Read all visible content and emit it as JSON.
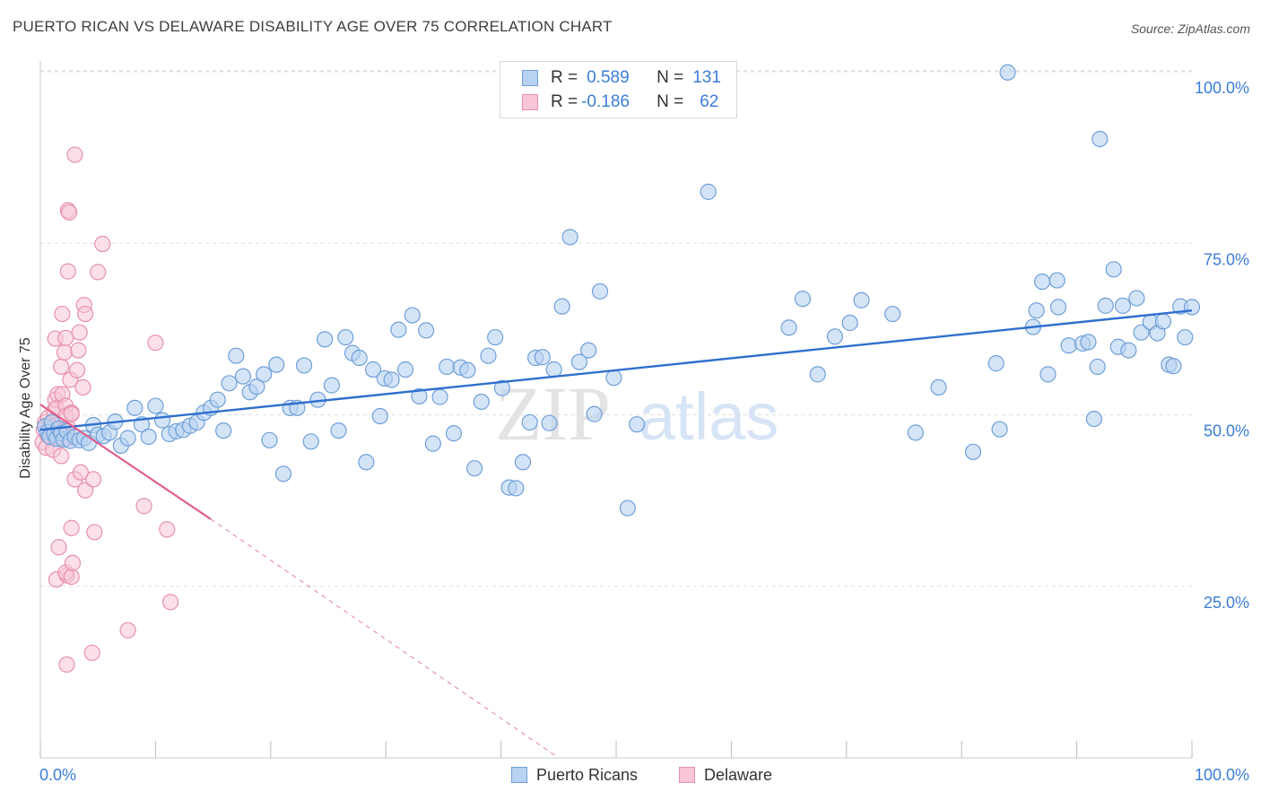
{
  "title": "PUERTO RICAN VS DELAWARE DISABILITY AGE OVER 75 CORRELATION CHART",
  "source": "Source: ZipAtlas.com",
  "watermark": {
    "zip": "ZIP",
    "atlas": "atlas"
  },
  "legend": {
    "rows": [
      {
        "r_label": "R =",
        "r_value": "0.589",
        "n_label": "N =",
        "n_value": "131"
      },
      {
        "r_label": "R =",
        "r_value": "-0.186",
        "n_label": "N =",
        "n_value": "62"
      }
    ]
  },
  "colors": {
    "blue_fill": "#b8d2f2",
    "blue_stroke": "#6f9fd8",
    "blue_line": "#2f6fce",
    "pink_fill": "#f8c6d6",
    "pink_stroke": "#e890ae",
    "pink_line": "#e0608c",
    "tick_text": "#3b7dd8",
    "grid": "#dedede"
  },
  "chart_data": {
    "type": "scatter",
    "title": "PUERTO RICAN VS DELAWARE DISABILITY AGE OVER 75 CORRELATION CHART",
    "xlabel": "",
    "ylabel": "Disability Age Over 75",
    "xlim": [
      0,
      100
    ],
    "ylim": [
      0,
      100
    ],
    "x_tick_labels": [
      "0.0%",
      "100.0%"
    ],
    "y_ticks": [
      25,
      50,
      75,
      100
    ],
    "y_tick_labels": [
      "25.0%",
      "50.0%",
      "75.0%",
      "100.0%"
    ],
    "grid": true,
    "legend_position": "top-center",
    "series": [
      {
        "name": "Puerto Ricans",
        "R": 0.589,
        "N": 131,
        "trend": {
          "x": [
            0,
            100
          ],
          "y": [
            47.8,
            65.2
          ]
        },
        "points": [
          [
            0.4,
            48.3
          ],
          [
            0.6,
            47.5
          ],
          [
            0.8,
            46.8
          ],
          [
            1.0,
            48.9
          ],
          [
            1.2,
            47.2
          ],
          [
            1.4,
            46.5
          ],
          [
            1.6,
            48.0
          ],
          [
            1.8,
            47.3
          ],
          [
            2.0,
            46.4
          ],
          [
            2.3,
            47.6
          ],
          [
            2.6,
            46.2
          ],
          [
            3.0,
            46.8
          ],
          [
            3.4,
            46.3
          ],
          [
            3.8,
            46.6
          ],
          [
            4.2,
            45.9
          ],
          [
            4.6,
            48.5
          ],
          [
            5.0,
            47.1
          ],
          [
            5.5,
            46.9
          ],
          [
            6.0,
            47.4
          ],
          [
            6.5,
            49.0
          ],
          [
            7.0,
            45.5
          ],
          [
            7.6,
            46.6
          ],
          [
            8.2,
            51.0
          ],
          [
            8.8,
            48.6
          ],
          [
            9.4,
            46.8
          ],
          [
            10.0,
            51.3
          ],
          [
            10.6,
            49.2
          ],
          [
            11.2,
            47.2
          ],
          [
            11.8,
            47.6
          ],
          [
            12.4,
            47.8
          ],
          [
            13.0,
            48.4
          ],
          [
            13.6,
            48.9
          ],
          [
            14.2,
            50.3
          ],
          [
            14.8,
            51.0
          ],
          [
            15.4,
            52.2
          ],
          [
            15.9,
            47.7
          ],
          [
            16.4,
            54.6
          ],
          [
            17.0,
            58.6
          ],
          [
            17.6,
            55.6
          ],
          [
            18.2,
            53.3
          ],
          [
            18.8,
            54.1
          ],
          [
            19.4,
            55.9
          ],
          [
            19.9,
            46.3
          ],
          [
            20.5,
            57.3
          ],
          [
            21.1,
            41.4
          ],
          [
            21.7,
            51.0
          ],
          [
            22.3,
            51.0
          ],
          [
            22.9,
            57.2
          ],
          [
            23.5,
            46.1
          ],
          [
            24.1,
            52.2
          ],
          [
            24.7,
            61.0
          ],
          [
            25.3,
            54.3
          ],
          [
            25.9,
            47.7
          ],
          [
            26.5,
            61.3
          ],
          [
            27.1,
            59.0
          ],
          [
            27.7,
            58.3
          ],
          [
            28.3,
            43.1
          ],
          [
            28.9,
            56.6
          ],
          [
            29.5,
            49.8
          ],
          [
            29.9,
            55.3
          ],
          [
            30.5,
            55.1
          ],
          [
            31.1,
            62.4
          ],
          [
            31.7,
            56.6
          ],
          [
            32.3,
            64.5
          ],
          [
            32.9,
            52.7
          ],
          [
            33.5,
            62.3
          ],
          [
            34.1,
            45.8
          ],
          [
            34.7,
            52.6
          ],
          [
            35.3,
            57.0
          ],
          [
            35.9,
            47.3
          ],
          [
            36.5,
            56.9
          ],
          [
            37.1,
            56.5
          ],
          [
            37.7,
            42.2
          ],
          [
            38.3,
            51.9
          ],
          [
            38.9,
            58.6
          ],
          [
            39.5,
            61.3
          ],
          [
            40.1,
            53.9
          ],
          [
            40.7,
            39.4
          ],
          [
            41.3,
            39.3
          ],
          [
            41.9,
            43.1
          ],
          [
            42.5,
            48.9
          ],
          [
            43.0,
            58.3
          ],
          [
            43.6,
            58.4
          ],
          [
            44.2,
            48.8
          ],
          [
            44.6,
            56.6
          ],
          [
            45.3,
            65.8
          ],
          [
            46.0,
            75.9
          ],
          [
            46.8,
            57.7
          ],
          [
            47.6,
            59.4
          ],
          [
            48.1,
            50.1
          ],
          [
            48.6,
            68.0
          ],
          [
            49.8,
            55.4
          ],
          [
            51.0,
            36.4
          ],
          [
            51.8,
            48.6
          ],
          [
            58.0,
            82.5
          ],
          [
            65.0,
            62.7
          ],
          [
            66.2,
            66.9
          ],
          [
            67.5,
            55.9
          ],
          [
            69.0,
            61.4
          ],
          [
            70.3,
            63.4
          ],
          [
            71.3,
            66.7
          ],
          [
            74.0,
            64.7
          ],
          [
            76.0,
            47.4
          ],
          [
            78.0,
            54.0
          ],
          [
            81.0,
            44.6
          ],
          [
            83.0,
            57.5
          ],
          [
            83.3,
            47.9
          ],
          [
            84.0,
            99.9
          ],
          [
            86.2,
            62.8
          ],
          [
            86.5,
            65.2
          ],
          [
            87.0,
            69.4
          ],
          [
            87.5,
            55.9
          ],
          [
            88.3,
            69.6
          ],
          [
            88.4,
            65.7
          ],
          [
            89.3,
            60.1
          ],
          [
            90.5,
            60.4
          ],
          [
            91.0,
            60.6
          ],
          [
            91.5,
            49.4
          ],
          [
            91.8,
            57.0
          ],
          [
            92.0,
            90.2
          ],
          [
            92.5,
            65.9
          ],
          [
            93.2,
            71.2
          ],
          [
            93.6,
            59.9
          ],
          [
            94.0,
            65.9
          ],
          [
            94.5,
            59.4
          ],
          [
            95.2,
            67.0
          ],
          [
            95.6,
            62.0
          ],
          [
            96.4,
            63.5
          ],
          [
            97.0,
            61.9
          ],
          [
            97.5,
            63.6
          ],
          [
            98.0,
            57.3
          ],
          [
            98.4,
            57.1
          ],
          [
            99.0,
            65.8
          ],
          [
            99.4,
            61.3
          ],
          [
            100.0,
            65.7
          ]
        ]
      },
      {
        "name": "Delaware",
        "R": -0.186,
        "N": 62,
        "trend": {
          "x": [
            0,
            14.8
          ],
          "y": [
            51.5,
            34.8
          ]
        },
        "trend_dashed": {
          "x": [
            14.8,
            45.0
          ],
          "y": [
            34.8,
            0.0
          ]
        },
        "points": [
          [
            0.2,
            46.0
          ],
          [
            0.3,
            47.8
          ],
          [
            0.4,
            48.9
          ],
          [
            0.5,
            45.2
          ],
          [
            0.6,
            47.1
          ],
          [
            0.7,
            49.6
          ],
          [
            0.8,
            47.0
          ],
          [
            0.9,
            46.7
          ],
          [
            1.0,
            48.2
          ],
          [
            1.1,
            44.9
          ],
          [
            1.2,
            50.6
          ],
          [
            1.3,
            52.2
          ],
          [
            1.4,
            51.0
          ],
          [
            1.5,
            53.0
          ],
          [
            1.6,
            47.7
          ],
          [
            1.7,
            46.5
          ],
          [
            1.3,
            61.1
          ],
          [
            1.4,
            26.0
          ],
          [
            1.6,
            30.7
          ],
          [
            1.8,
            44.0
          ],
          [
            1.8,
            57.0
          ],
          [
            1.9,
            53.0
          ],
          [
            1.9,
            64.7
          ],
          [
            2.1,
            59.1
          ],
          [
            2.0,
            47.2
          ],
          [
            2.2,
            61.2
          ],
          [
            2.2,
            51.3
          ],
          [
            2.4,
            48.1
          ],
          [
            2.4,
            70.9
          ],
          [
            2.2,
            49.8
          ],
          [
            2.3,
            47.0
          ],
          [
            2.3,
            46.5
          ],
          [
            2.3,
            26.6
          ],
          [
            2.2,
            27.0
          ],
          [
            2.3,
            13.6
          ],
          [
            2.4,
            79.8
          ],
          [
            2.5,
            79.5
          ],
          [
            2.6,
            55.1
          ],
          [
            2.7,
            50.3
          ],
          [
            2.7,
            50.1
          ],
          [
            2.7,
            26.4
          ],
          [
            2.7,
            33.5
          ],
          [
            2.8,
            28.4
          ],
          [
            3.0,
            87.9
          ],
          [
            3.0,
            40.6
          ],
          [
            3.2,
            56.5
          ],
          [
            3.3,
            59.4
          ],
          [
            3.4,
            62.0
          ],
          [
            3.5,
            41.6
          ],
          [
            3.7,
            54.0
          ],
          [
            3.8,
            66.0
          ],
          [
            3.9,
            64.7
          ],
          [
            3.9,
            39.0
          ],
          [
            4.5,
            15.3
          ],
          [
            4.6,
            40.6
          ],
          [
            4.7,
            32.9
          ],
          [
            5.0,
            70.8
          ],
          [
            5.4,
            74.9
          ],
          [
            7.6,
            18.6
          ],
          [
            9.0,
            36.7
          ],
          [
            10.0,
            60.5
          ],
          [
            11.0,
            33.3
          ],
          [
            11.3,
            22.7
          ]
        ]
      }
    ]
  },
  "bottom_legend": [
    {
      "label": "Puerto Ricans"
    },
    {
      "label": "Delaware"
    }
  ]
}
